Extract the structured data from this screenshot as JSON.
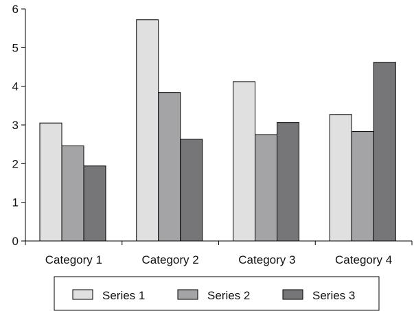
{
  "chart_data": {
    "type": "bar",
    "categories": [
      "Category 1",
      "Category 2",
      "Category 3",
      "Category 4"
    ],
    "series": [
      {
        "name": "Series 1",
        "values": [
          3.05,
          5.72,
          4.12,
          3.27
        ]
      },
      {
        "name": "Series 2",
        "values": [
          2.46,
          3.84,
          2.75,
          2.83
        ]
      },
      {
        "name": "Series 3",
        "values": [
          1.94,
          2.63,
          3.06,
          4.62
        ]
      }
    ],
    "yticks": [
      "0",
      "1",
      "2",
      "3",
      "4",
      "5",
      "6"
    ],
    "ylim": [
      0,
      6
    ],
    "grid": false,
    "legend_position": "bottom",
    "colors": {
      "series": [
        "#e0e0e0",
        "#a4a4a6",
        "#767678"
      ],
      "bar_stroke": "#000000",
      "axis": "#000000"
    }
  }
}
